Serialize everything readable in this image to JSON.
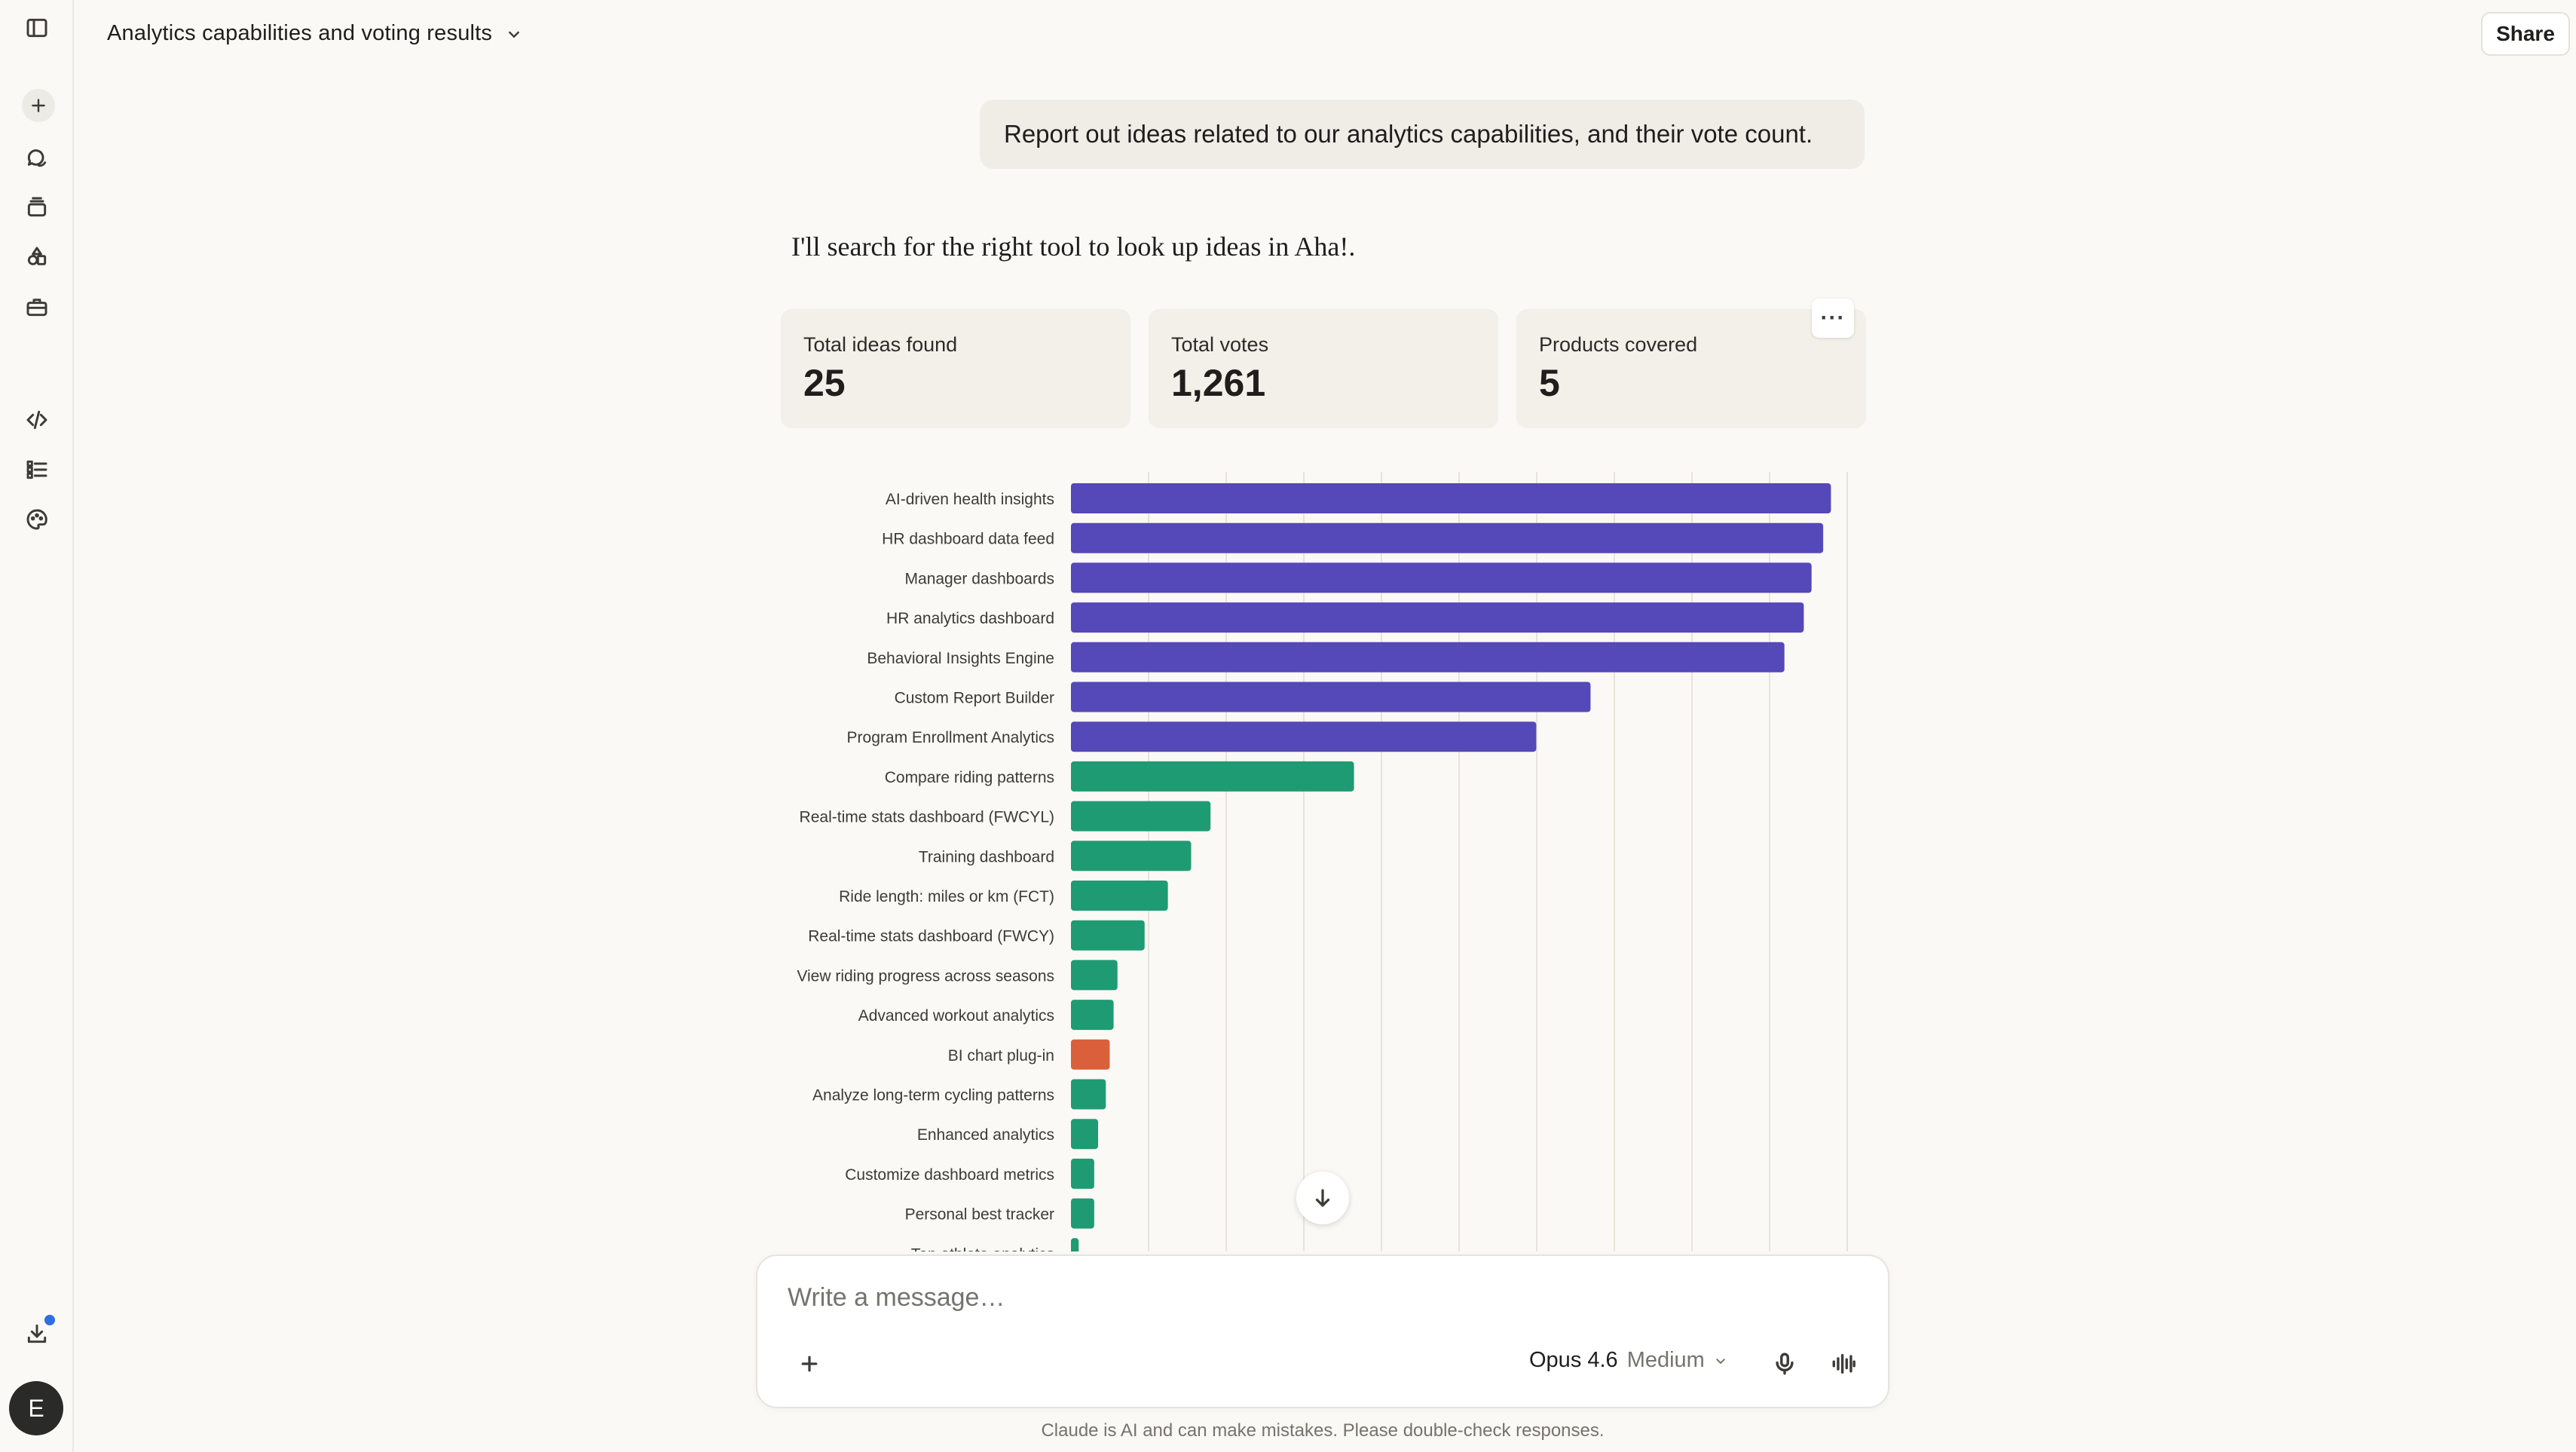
{
  "header": {
    "title": "Analytics capabilities and voting results",
    "share_label": "Share"
  },
  "rail": {
    "icons": [
      "sidebar-toggle-icon",
      "new-chat-icon",
      "chats-icon",
      "projects-icon",
      "artifacts-icon",
      "tools-icon",
      "code-icon",
      "tasks-icon",
      "palette-icon",
      "download-icon"
    ],
    "avatar_initial": "E"
  },
  "conversation": {
    "user_message": "Report out ideas related to our analytics capabilities, and their vote count.",
    "assistant_message": "I'll search for the right tool to look up ideas in Aha!."
  },
  "stats": [
    {
      "label": "Total ideas found",
      "value": "25"
    },
    {
      "label": "Total votes",
      "value": "1,261"
    },
    {
      "label": "Products covered",
      "value": "5"
    }
  ],
  "card_menu_label": "···",
  "colors": {
    "purple": "#5548b8",
    "green": "#1f9b73",
    "orange": "#d9603a",
    "background": "#faf9f5"
  },
  "chart_data": {
    "type": "bar",
    "orientation": "horizontal",
    "title": "",
    "xlabel": "",
    "ylabel": "",
    "xlim": [
      0,
      100
    ],
    "grid": true,
    "categories": [
      "AI-driven health insights",
      "HR dashboard data feed",
      "Manager dashboards",
      "HR analytics dashboard",
      "Behavioral Insights Engine",
      "Custom Report Builder",
      "Program Enrollment Analytics",
      "Compare riding patterns",
      "Real-time stats dashboard (FWCYL)",
      "Training dashboard",
      "Ride length: miles or km (FCT)",
      "Real-time stats dashboard (FWCY)",
      "View riding progress across seasons",
      "Advanced workout analytics",
      "BI chart plug-in",
      "Analyze long-term cycling patterns",
      "Enhanced analytics",
      "Customize dashboard metrics",
      "Personal best tracker",
      "Top athlete analytics"
    ],
    "values": [
      98,
      97,
      95.5,
      94.5,
      92,
      67,
      60,
      36.5,
      18,
      15.5,
      12.5,
      9.5,
      6,
      5.5,
      5,
      4.5,
      3.5,
      3,
      3,
      1
    ],
    "bar_colors": [
      "purple",
      "purple",
      "purple",
      "purple",
      "purple",
      "purple",
      "purple",
      "green",
      "green",
      "green",
      "green",
      "green",
      "green",
      "green",
      "orange",
      "green",
      "green",
      "green",
      "green",
      "green"
    ]
  },
  "composer": {
    "placeholder": "Write a message…",
    "model_name": "Opus 4.6",
    "model_effort": "Medium"
  },
  "disclaimer": "Claude is AI and can make mistakes. Please double-check responses."
}
